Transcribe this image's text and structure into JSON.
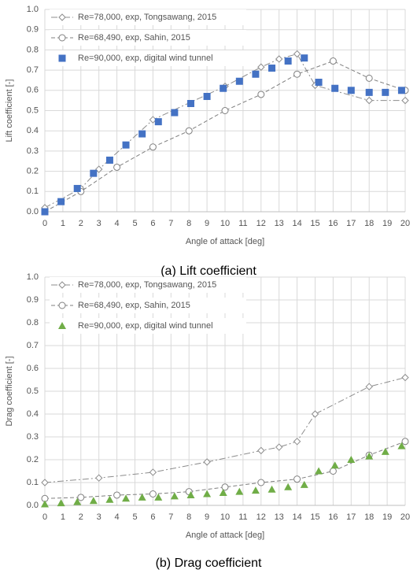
{
  "chart_data": [
    {
      "type": "scatter",
      "caption": "(a)  Lift coefficient",
      "xlabel": "Angle of attack [deg]",
      "ylabel": "Lift coefficient [-]",
      "xlim": [
        0,
        20
      ],
      "xticks": [
        0,
        1,
        2,
        3,
        4,
        5,
        6,
        7,
        8,
        9,
        10,
        11,
        12,
        13,
        14,
        15,
        16,
        17,
        18,
        19,
        20
      ],
      "ylim": [
        0,
        1
      ],
      "yticks": [
        {
          "value": 0,
          "label": "0.0"
        },
        0.1,
        0.2,
        0.3,
        0.4,
        0.5,
        0.6,
        0.7,
        0.8,
        0.9,
        {
          "value": 1,
          "label": "1.0"
        }
      ],
      "grid": true,
      "legend": "upper left",
      "series": [
        {
          "name": "Re=78,000, exp, Tongsawang, 2015",
          "color": "#8c8c8c",
          "marker": "diamond",
          "line": "dashdot",
          "x": [
            0,
            2,
            3,
            6,
            10,
            12,
            13,
            14,
            15,
            18,
            20
          ],
          "values": [
            0.02,
            0.115,
            0.21,
            0.455,
            0.62,
            0.715,
            0.755,
            0.78,
            0.625,
            0.55,
            0.55
          ]
        },
        {
          "name": "Re=68,490, exp, Sahin, 2015",
          "color": "#7f7f7f",
          "marker": "circle",
          "line": "dashed",
          "x": [
            0,
            2,
            4,
            6,
            8,
            10,
            12,
            14,
            16,
            18,
            20
          ],
          "values": [
            0.0,
            0.1,
            0.22,
            0.32,
            0.4,
            0.5,
            0.58,
            0.68,
            0.745,
            0.66,
            0.6
          ]
        },
        {
          "name": "Re=90,000, exp, digital wind tunnel",
          "color": "#4472c4",
          "marker": "square",
          "line": null,
          "x": [
            0,
            0.9,
            1.8,
            2.7,
            3.6,
            4.5,
            5.4,
            6.3,
            7.2,
            8.1,
            9.0,
            9.9,
            10.8,
            11.7,
            12.6,
            13.5,
            14.4,
            15.2,
            16.1,
            17.0,
            18.0,
            18.9,
            19.8
          ],
          "values": [
            0.0,
            0.05,
            0.115,
            0.19,
            0.255,
            0.33,
            0.385,
            0.445,
            0.49,
            0.535,
            0.57,
            0.61,
            0.645,
            0.68,
            0.71,
            0.745,
            0.76,
            0.64,
            0.61,
            0.6,
            0.59,
            0.59,
            0.6
          ]
        }
      ]
    },
    {
      "type": "scatter",
      "caption": "(b)  Drag coefficient",
      "xlabel": "Angle of attack [deg]",
      "ylabel": "Drag coefficient [-]",
      "xlim": [
        0,
        20
      ],
      "xticks": [
        0,
        1,
        2,
        3,
        4,
        5,
        6,
        7,
        8,
        9,
        10,
        11,
        12,
        13,
        14,
        15,
        16,
        17,
        18,
        19,
        20
      ],
      "ylim": [
        0,
        1
      ],
      "yticks": [
        {
          "value": 0,
          "label": "0.0"
        },
        0.1,
        0.2,
        0.3,
        0.4,
        0.5,
        0.6,
        0.7,
        0.8,
        0.9,
        {
          "value": 1,
          "label": "1.0"
        }
      ],
      "grid": true,
      "legend": "upper left",
      "series": [
        {
          "name": "Re=78,000, exp, Tongsawang, 2015",
          "color": "#8c8c8c",
          "marker": "diamond",
          "line": "dashdot",
          "x": [
            0,
            3,
            6,
            9,
            12,
            13,
            14,
            15,
            18,
            20
          ],
          "values": [
            0.1,
            0.12,
            0.145,
            0.19,
            0.24,
            0.255,
            0.28,
            0.4,
            0.52,
            0.56
          ]
        },
        {
          "name": "Re=68,490, exp, Sahin, 2015",
          "color": "#7f7f7f",
          "marker": "circle",
          "line": "dashed",
          "x": [
            0,
            2,
            4,
            6,
            8,
            10,
            12,
            14,
            16,
            18,
            20
          ],
          "values": [
            0.03,
            0.035,
            0.045,
            0.05,
            0.06,
            0.08,
            0.1,
            0.115,
            0.15,
            0.22,
            0.28
          ]
        },
        {
          "name": "Re=90,000, exp, digital wind tunnel",
          "color": "#70ad47",
          "marker": "triangle",
          "line": null,
          "x": [
            0,
            0.9,
            1.8,
            2.7,
            3.6,
            4.5,
            5.4,
            6.3,
            7.2,
            8.1,
            9.0,
            9.9,
            10.8,
            11.7,
            12.6,
            13.5,
            14.4,
            15.2,
            16.1,
            17.0,
            18.0,
            18.9,
            19.8
          ],
          "values": [
            0.005,
            0.01,
            0.015,
            0.02,
            0.025,
            0.03,
            0.035,
            0.035,
            0.04,
            0.045,
            0.05,
            0.055,
            0.06,
            0.065,
            0.07,
            0.08,
            0.09,
            0.15,
            0.175,
            0.2,
            0.215,
            0.235,
            0.26
          ]
        }
      ]
    }
  ]
}
